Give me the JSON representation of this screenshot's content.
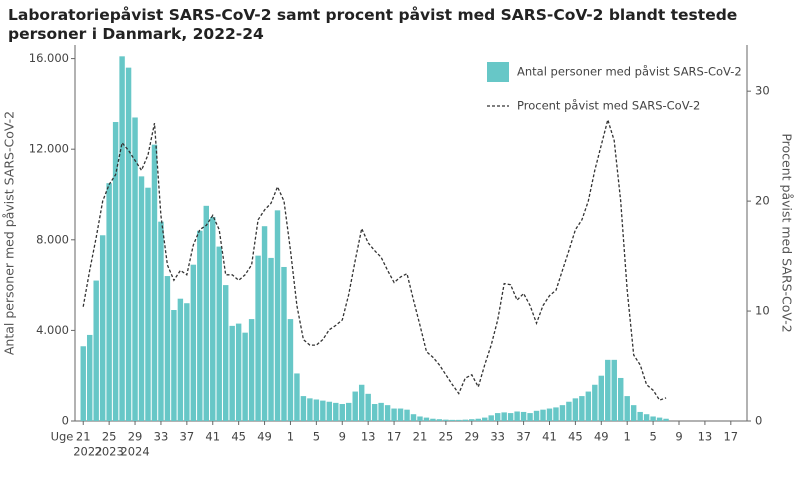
{
  "chart_data": {
    "type": "bar-line",
    "title": [
      "Laboratoriepåvist SARS-CoV-2 samt procent påvist med SARS-CoV-2 blandt testede",
      "personer i Danmark, 2022-24"
    ],
    "y_label": "Antal personer med påvist SARS-CoV-2",
    "y2_label": "Procent påvist med SARS-CoV-2",
    "x_label": "Uge",
    "years": [
      "2022",
      "2023",
      "2024"
    ],
    "categories": [
      "21",
      null,
      null,
      null,
      "25",
      null,
      null,
      null,
      "29",
      null,
      null,
      null,
      "33",
      null,
      null,
      null,
      "37",
      null,
      null,
      null,
      "41",
      null,
      null,
      null,
      "45",
      null,
      null,
      null,
      "49",
      null,
      null,
      null,
      "1",
      null,
      null,
      null,
      "5",
      null,
      null,
      null,
      "9",
      null,
      null,
      null,
      "13",
      null,
      null,
      null,
      "17",
      null,
      null,
      null,
      "21",
      null,
      null,
      null,
      "25",
      null,
      null,
      null,
      "29",
      null,
      null,
      null,
      "33",
      null,
      null,
      null,
      "37",
      null,
      null,
      null,
      "41",
      null,
      null,
      null,
      "45",
      null,
      null,
      null,
      "49",
      null,
      null,
      null,
      "1",
      null,
      null,
      null,
      "5",
      null,
      null,
      null,
      "9",
      null,
      null,
      null,
      "13",
      null,
      null,
      null,
      "17",
      null,
      null
    ],
    "series": [
      {
        "name": "Antal personer med påvist SARS-CoV-2",
        "kind": "bar",
        "axis": "y",
        "color": "#67c7c7",
        "values": [
          3300,
          3800,
          6200,
          8200,
          10500,
          13200,
          16100,
          15600,
          13400,
          10800,
          10300,
          12200,
          8800,
          6400,
          4900,
          5400,
          5200,
          6900,
          8400,
          9500,
          9000,
          7700,
          6000,
          4200,
          4300,
          3900,
          4500,
          7300,
          8600,
          7200,
          9300,
          6800,
          4500,
          2100,
          1100,
          1000,
          950,
          900,
          850,
          800,
          750,
          800,
          1300,
          1600,
          1200,
          750,
          800,
          700,
          550,
          550,
          500,
          300,
          200,
          150,
          100,
          80,
          60,
          50,
          50,
          60,
          80,
          100,
          150,
          250,
          350,
          380,
          350,
          420,
          400,
          350,
          450,
          500,
          550,
          600,
          700,
          850,
          1000,
          1100,
          1300,
          1600,
          2000,
          2700,
          2700,
          1900,
          1100,
          700,
          400,
          300,
          200,
          150,
          100,
          null,
          null,
          null,
          null,
          null,
          null,
          null,
          null,
          null,
          null,
          null,
          null
        ]
      },
      {
        "name": "Procent påvist med SARS-CoV-2",
        "kind": "line",
        "axis": "y2",
        "color": "#333333",
        "values": [
          10.4,
          13.7,
          16.7,
          20,
          21.5,
          22.4,
          25.3,
          24.6,
          23.7,
          22.8,
          24.2,
          27.1,
          18.7,
          14.2,
          12.8,
          13.7,
          13.3,
          16,
          17.4,
          17.8,
          18.7,
          17.4,
          13.3,
          13.3,
          12.8,
          13.3,
          14.2,
          18.3,
          19.2,
          19.8,
          21.3,
          20,
          15.5,
          10.5,
          7.4,
          6.9,
          6.9,
          7.4,
          8.3,
          8.7,
          9.2,
          11.5,
          14.6,
          17.5,
          16.2,
          15.5,
          14.9,
          13.7,
          12.6,
          13.1,
          13.4,
          11,
          8.7,
          6.3,
          5.8,
          5.1,
          4.2,
          3.3,
          2.5,
          3.9,
          4.2,
          3.1,
          5.1,
          6.9,
          9.2,
          12.5,
          12.4,
          11,
          11.6,
          10.5,
          8.9,
          10.5,
          11.4,
          11.9,
          13.7,
          15.5,
          17.4,
          18.3,
          20,
          22.8,
          25.1,
          27.4,
          25.5,
          20,
          11.9,
          6,
          5.1,
          3.3,
          2.8,
          1.9,
          2.1,
          null,
          null,
          null,
          null,
          null,
          null,
          null,
          null,
          null,
          null,
          null,
          null
        ]
      }
    ],
    "ylim": [
      0,
      16600
    ],
    "yticks": [
      0,
      {
        "value": 4000,
        "label": "4.000"
      },
      {
        "value": 8000,
        "label": "8.000"
      },
      {
        "value": 12000,
        "label": "12.000"
      },
      {
        "value": 16000,
        "label": "16.000"
      }
    ],
    "y2lim": [
      0,
      34.2
    ],
    "y2ticks": [
      0,
      10,
      20,
      30
    ],
    "legend": "top-right",
    "grid": false
  }
}
